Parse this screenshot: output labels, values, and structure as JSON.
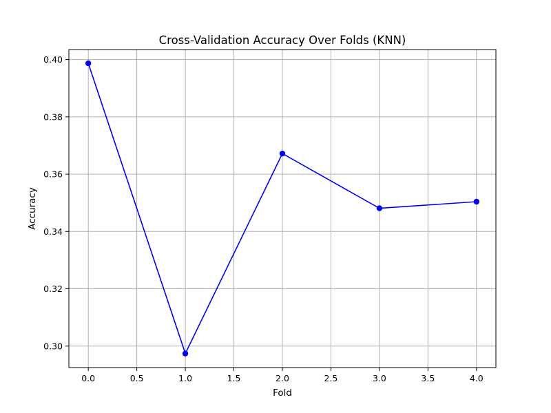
{
  "chart_data": {
    "type": "line",
    "title": "Cross-Validation Accuracy Over Folds (KNN)",
    "xlabel": "Fold",
    "ylabel": "Accuracy",
    "x": [
      0,
      1,
      2,
      3,
      4
    ],
    "series": [
      {
        "values": [
          0.3987,
          0.2974,
          0.3672,
          0.3481,
          0.3504
        ],
        "color": "#0000ff",
        "marker": "circle"
      }
    ],
    "xlim": [
      -0.2,
      4.2
    ],
    "ylim": [
      0.2925,
      0.4035
    ],
    "xticks": [
      0.0,
      0.5,
      1.0,
      1.5,
      2.0,
      2.5,
      3.0,
      3.5,
      4.0
    ],
    "xtick_labels": [
      "0.0",
      "0.5",
      "1.0",
      "1.5",
      "2.0",
      "2.5",
      "3.0",
      "3.5",
      "4.0"
    ],
    "yticks": [
      0.3,
      0.32,
      0.34,
      0.36,
      0.38,
      0.4
    ],
    "ytick_labels": [
      "0.30",
      "0.32",
      "0.34",
      "0.36",
      "0.38",
      "0.40"
    ],
    "grid": true,
    "grid_color": "#b0b0b0"
  }
}
